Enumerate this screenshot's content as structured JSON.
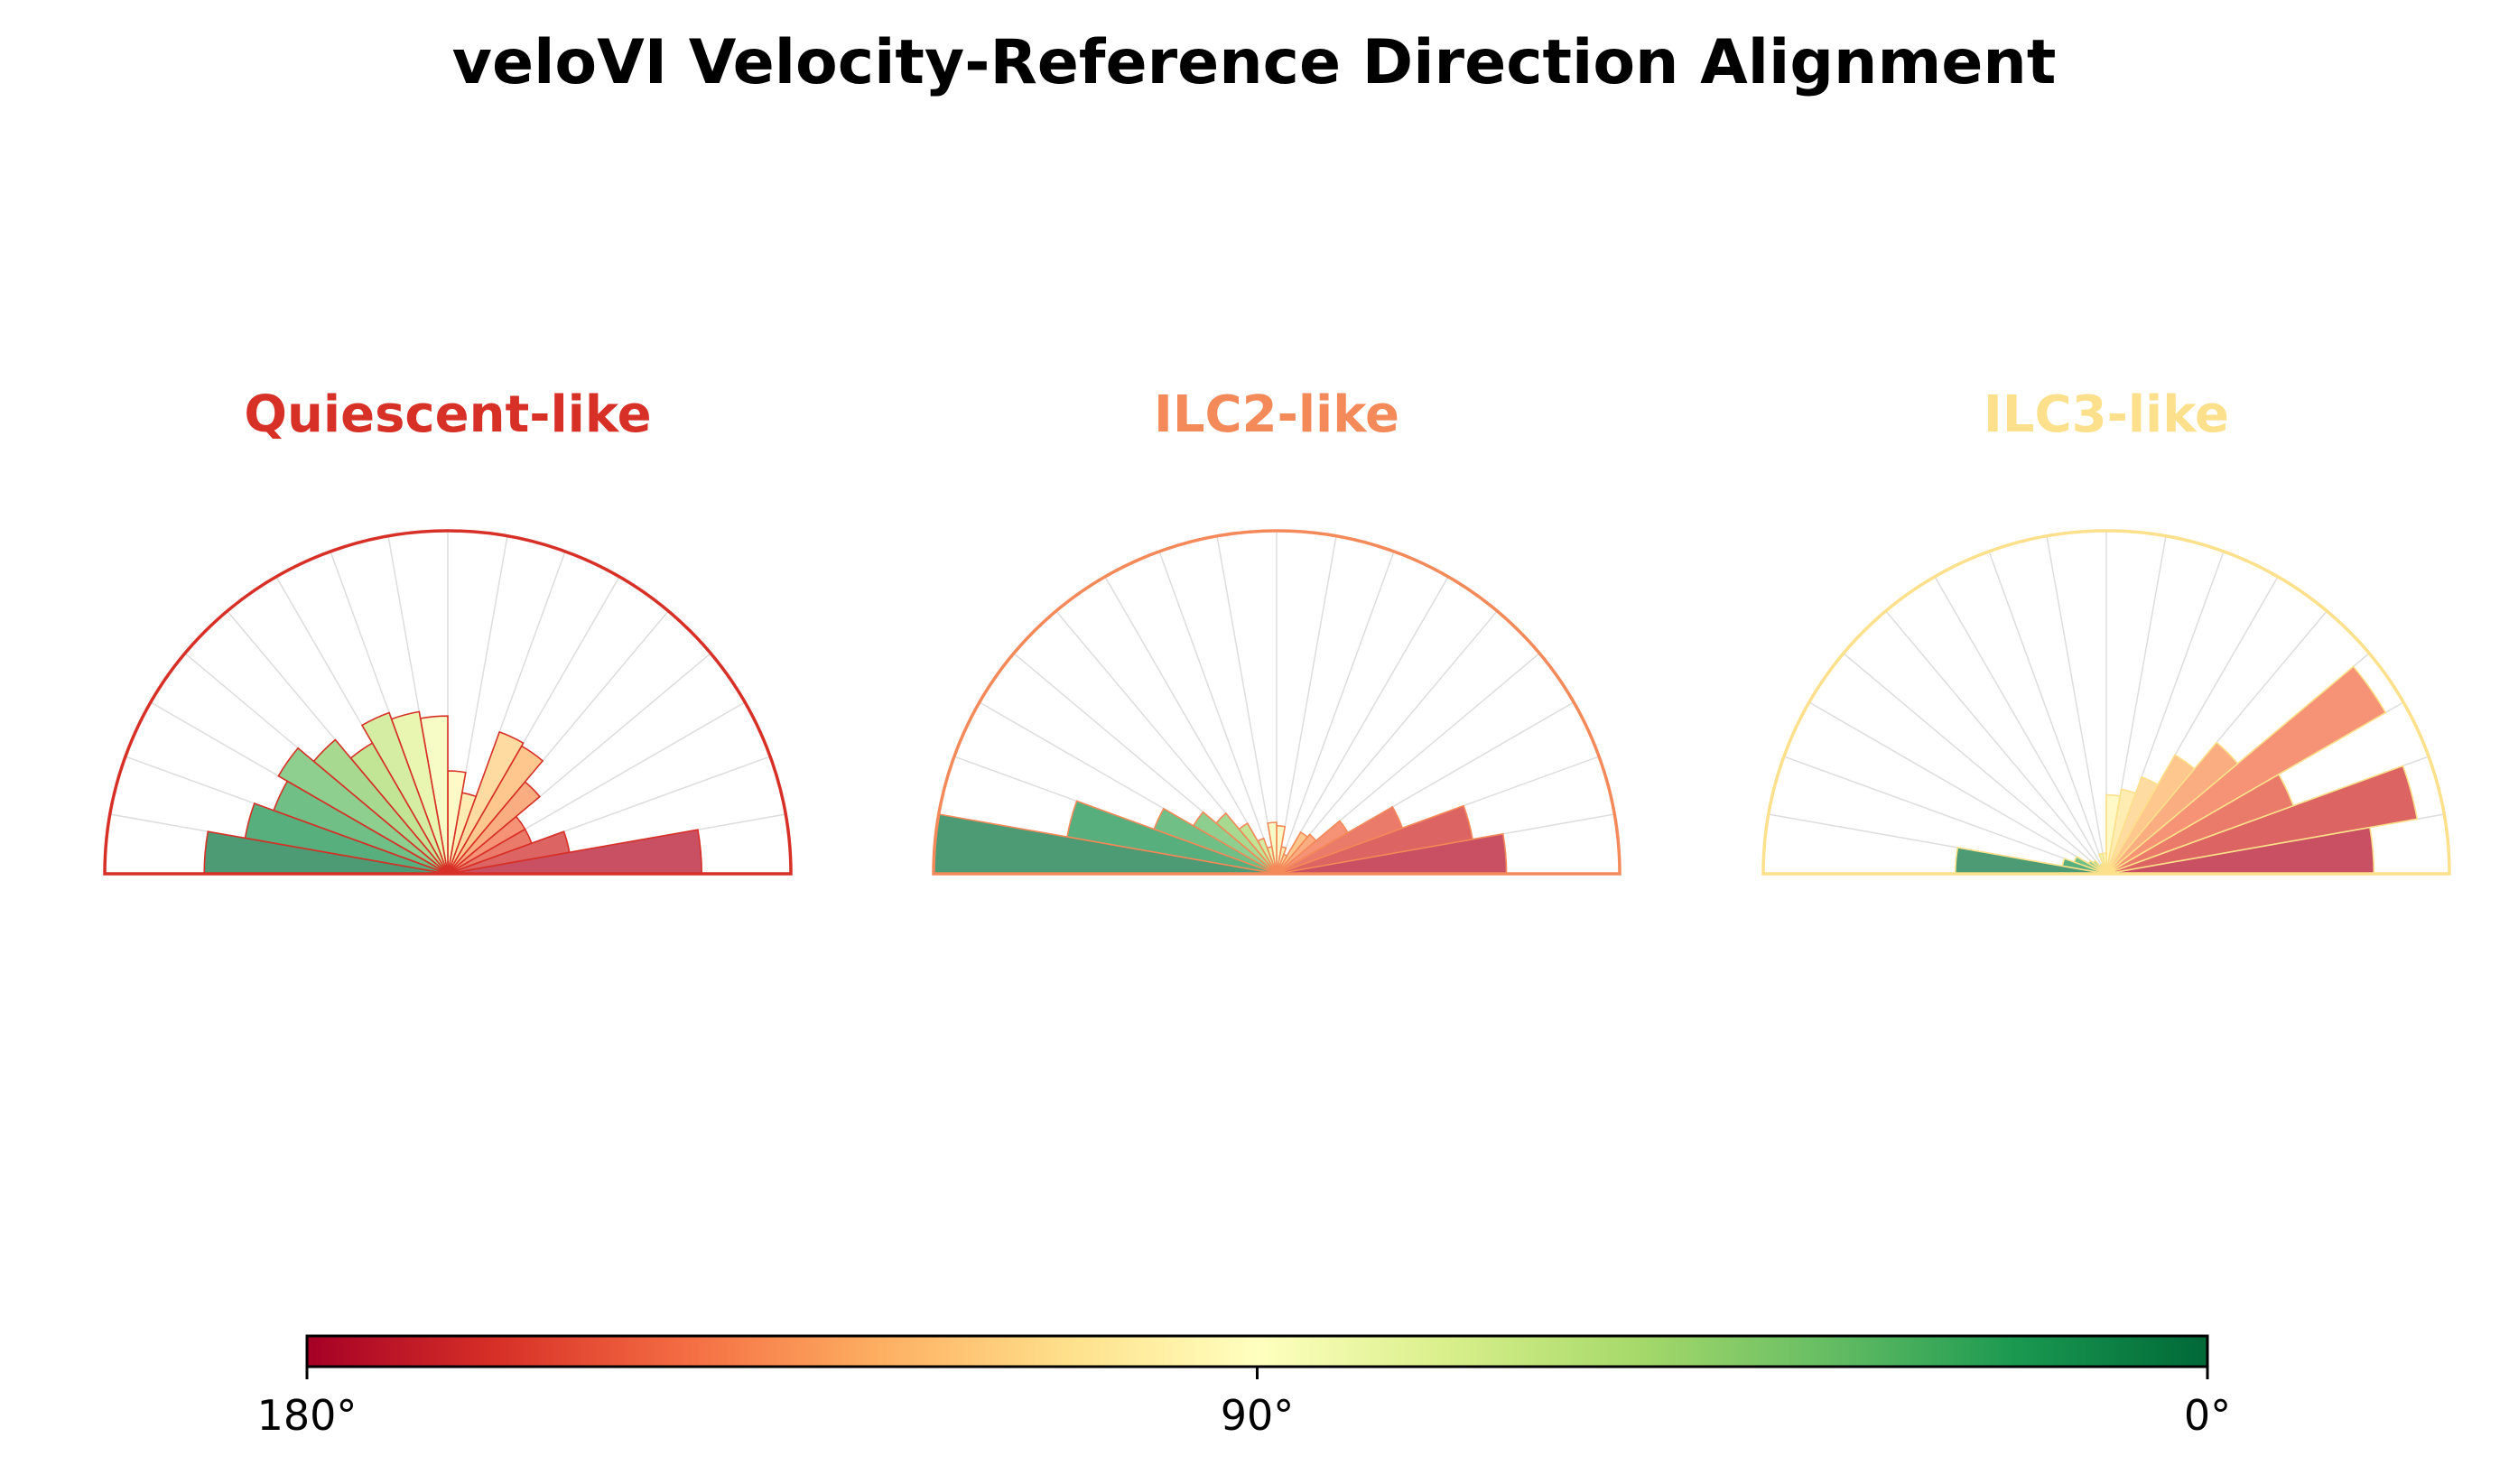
{
  "title": "veloVI Velocity-Reference Direction Alignment",
  "colors": {
    "colormap": "RdYlGn",
    "panel_quiescent": "#d73027",
    "panel_ilc2": "#f4895a",
    "panel_ilc3": "#fde08b"
  },
  "chart_data": {
    "type": "polar-bar",
    "angular_range_deg": [
      0,
      180
    ],
    "bin_count": 18,
    "bin_width_deg": 10,
    "radial_max": 1.0,
    "radial_labels_visible": false,
    "grid": true,
    "panels": [
      {
        "name": "Quiescent-like",
        "color": "#d73027",
        "bins": [
          {
            "angle_center": 5,
            "radius": 0.74
          },
          {
            "angle_center": 15,
            "radius": 0.36
          },
          {
            "angle_center": 25,
            "radius": 0.26
          },
          {
            "angle_center": 35,
            "radius": 0.26
          },
          {
            "angle_center": 45,
            "radius": 0.35
          },
          {
            "angle_center": 55,
            "radius": 0.43
          },
          {
            "angle_center": 65,
            "radius": 0.44
          },
          {
            "angle_center": 75,
            "radius": 0.24
          },
          {
            "angle_center": 85,
            "radius": 0.3
          },
          {
            "angle_center": 95,
            "radius": 0.46
          },
          {
            "angle_center": 105,
            "radius": 0.48
          },
          {
            "angle_center": 115,
            "radius": 0.5
          },
          {
            "angle_center": 125,
            "radius": 0.44
          },
          {
            "angle_center": 135,
            "radius": 0.51
          },
          {
            "angle_center": 145,
            "radius": 0.57
          },
          {
            "angle_center": 155,
            "radius": 0.54
          },
          {
            "angle_center": 165,
            "radius": 0.6
          },
          {
            "angle_center": 175,
            "radius": 0.71
          }
        ]
      },
      {
        "name": "ILC2-like",
        "color": "#f4895a",
        "bins": [
          {
            "angle_center": 5,
            "radius": 0.67
          },
          {
            "angle_center": 15,
            "radius": 0.58
          },
          {
            "angle_center": 25,
            "radius": 0.39
          },
          {
            "angle_center": 35,
            "radius": 0.24
          },
          {
            "angle_center": 45,
            "radius": 0.15
          },
          {
            "angle_center": 55,
            "radius": 0.14
          },
          {
            "angle_center": 65,
            "radius": 0.06
          },
          {
            "angle_center": 75,
            "radius": 0.08
          },
          {
            "angle_center": 85,
            "radius": 0.14
          },
          {
            "angle_center": 95,
            "radius": 0.15
          },
          {
            "angle_center": 105,
            "radius": 0.08
          },
          {
            "angle_center": 115,
            "radius": 0.11
          },
          {
            "angle_center": 125,
            "radius": 0.17
          },
          {
            "angle_center": 135,
            "radius": 0.23
          },
          {
            "angle_center": 145,
            "radius": 0.28
          },
          {
            "angle_center": 155,
            "radius": 0.38
          },
          {
            "angle_center": 165,
            "radius": 0.62
          },
          {
            "angle_center": 175,
            "radius": 1.0
          }
        ]
      },
      {
        "name": "ILC3-like",
        "color": "#fde08b",
        "bins": [
          {
            "angle_center": 5,
            "radius": 0.78
          },
          {
            "angle_center": 15,
            "radius": 0.92
          },
          {
            "angle_center": 25,
            "radius": 0.58
          },
          {
            "angle_center": 35,
            "radius": 0.94
          },
          {
            "angle_center": 45,
            "radius": 0.5
          },
          {
            "angle_center": 55,
            "radius": 0.4
          },
          {
            "angle_center": 65,
            "radius": 0.3
          },
          {
            "angle_center": 75,
            "radius": 0.25
          },
          {
            "angle_center": 85,
            "radius": 0.23
          },
          {
            "angle_center": 95,
            "radius": 0.06
          },
          {
            "angle_center": 105,
            "radius": 0.06
          },
          {
            "angle_center": 115,
            "radius": 0.03
          },
          {
            "angle_center": 125,
            "radius": 0.03
          },
          {
            "angle_center": 135,
            "radius": 0.05
          },
          {
            "angle_center": 145,
            "radius": 0.06
          },
          {
            "angle_center": 155,
            "radius": 0.1
          },
          {
            "angle_center": 165,
            "radius": 0.13
          },
          {
            "angle_center": 175,
            "radius": 0.44
          }
        ]
      }
    ],
    "colorbar": {
      "cmap": "RdYlGn",
      "min": 0,
      "max": 180,
      "reversed": true,
      "ticks": [
        "180°",
        "90°",
        "0°"
      ]
    }
  }
}
